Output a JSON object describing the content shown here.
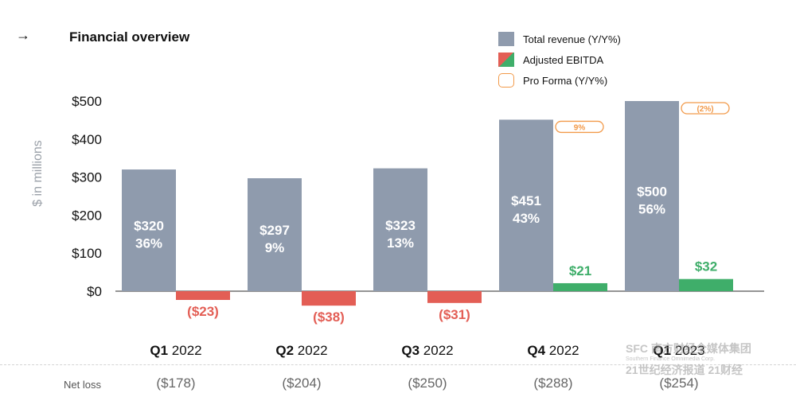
{
  "header": {
    "arrow_icon": "→",
    "title": "Financial overview"
  },
  "legend": [
    {
      "label": "Total revenue (Y/Y%)",
      "swatch": "revenue"
    },
    {
      "label": "Adjusted EBITDA",
      "swatch": "ebitda"
    },
    {
      "label": "Pro Forma (Y/Y%)",
      "swatch": "proforma"
    }
  ],
  "colors": {
    "revenue": "#8f9bad",
    "negative": "#e35e55",
    "positive": "#3fae6a",
    "proforma": "#f29a4a"
  },
  "chart_data": {
    "type": "bar",
    "title": "Financial overview",
    "ylabel": "$ in millions",
    "ylim": [
      0,
      500
    ],
    "yticks": [
      "$0",
      "$100",
      "$200",
      "$300",
      "$400",
      "$500"
    ],
    "ytick_values": [
      0,
      100,
      200,
      300,
      400,
      500
    ],
    "categories": [
      {
        "quarter": "Q1",
        "year": "2022"
      },
      {
        "quarter": "Q2",
        "year": "2022"
      },
      {
        "quarter": "Q3",
        "year": "2022"
      },
      {
        "quarter": "Q4",
        "year": "2022"
      },
      {
        "quarter": "Q1",
        "year": "2023"
      }
    ],
    "series": [
      {
        "name": "Total revenue (Y/Y%)",
        "values": [
          320,
          297,
          323,
          451,
          500
        ],
        "value_labels": [
          "$320",
          "$297",
          "$323",
          "$451",
          "$500"
        ],
        "growth_labels": [
          "36%",
          "9%",
          "13%",
          "43%",
          "56%"
        ]
      },
      {
        "name": "Adjusted EBITDA",
        "values": [
          -23,
          -38,
          -31,
          21,
          32
        ],
        "value_labels": [
          "($23)",
          "($38)",
          "($31)",
          "$21",
          "$32"
        ]
      },
      {
        "name": "Pro Forma (Y/Y%)",
        "values": [
          null,
          null,
          null,
          9,
          -2
        ],
        "value_labels": [
          "",
          "",
          "",
          "9%",
          "(2%)"
        ]
      }
    ],
    "grid": false,
    "legend_position": "top-right"
  },
  "net_loss": {
    "label": "Net loss",
    "values": [
      "($178)",
      "($204)",
      "($250)",
      "($288)",
      "($254)"
    ]
  },
  "watermark": {
    "line1": "SFC 南方财经全媒体集团",
    "line2": "Southern Finance Omnimedia Corp.",
    "line3": "21世纪经济报道 21财经"
  }
}
